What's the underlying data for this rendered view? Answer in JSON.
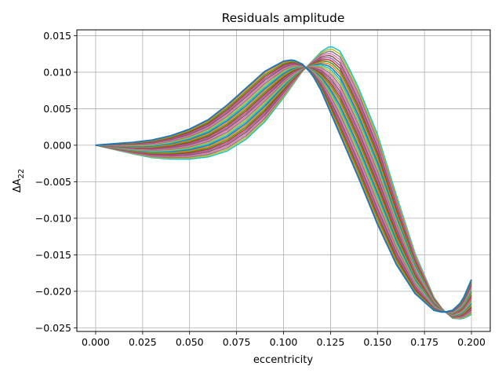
{
  "chart_data": {
    "type": "line",
    "title": "Residuals amplitude",
    "xlabel": "eccentricity",
    "ylabel": "ΔA22",
    "ylabel_main": "ΔA",
    "ylabel_sub": "22",
    "xlim": [
      -0.01,
      0.21
    ],
    "ylim": [
      -0.0255,
      0.0158
    ],
    "grid": true,
    "legend": "none",
    "x_ticks": [
      0.0,
      0.025,
      0.05,
      0.075,
      0.1,
      0.125,
      0.15,
      0.175,
      0.2
    ],
    "x_tick_labels": [
      "0.000",
      "0.025",
      "0.050",
      "0.075",
      "0.100",
      "0.125",
      "0.150",
      "0.175",
      "0.200"
    ],
    "y_ticks": [
      0.015,
      0.01,
      0.005,
      0.0,
      -0.005,
      -0.01,
      -0.015,
      -0.02,
      -0.025
    ],
    "y_tick_labels": [
      "0.015",
      "0.010",
      "0.005",
      "0.000",
      "−0.005",
      "−0.010",
      "−0.015",
      "−0.020",
      "−0.025"
    ],
    "series_count": 30,
    "series_colors": [
      "#1f77b4",
      "#ff7f0e",
      "#2ca02c",
      "#d62728",
      "#9467bd",
      "#8c564b",
      "#e377c2",
      "#7f7f7f",
      "#bcbd22",
      "#17becf"
    ],
    "envelope_first": {
      "x": [
        0.0,
        0.01,
        0.02,
        0.03,
        0.04,
        0.05,
        0.06,
        0.07,
        0.08,
        0.09,
        0.1,
        0.105,
        0.11,
        0.115,
        0.12,
        0.13,
        0.14,
        0.15,
        0.16,
        0.17,
        0.18,
        0.185,
        0.19,
        0.195,
        0.2
      ],
      "y": [
        0.0,
        0.0002,
        0.0004,
        0.0007,
        0.0013,
        0.0022,
        0.0035,
        0.0055,
        0.0078,
        0.0101,
        0.0115,
        0.0117,
        0.0111,
        0.0098,
        0.0075,
        0.0015,
        -0.0045,
        -0.0108,
        -0.0163,
        -0.0203,
        -0.0226,
        -0.0229,
        -0.0226,
        -0.0214,
        -0.0184
      ]
    },
    "envelope_last": {
      "x": [
        0.0,
        0.01,
        0.02,
        0.03,
        0.04,
        0.05,
        0.06,
        0.07,
        0.08,
        0.09,
        0.1,
        0.11,
        0.12,
        0.125,
        0.13,
        0.135,
        0.14,
        0.15,
        0.16,
        0.17,
        0.18,
        0.185,
        0.19,
        0.195,
        0.2
      ],
      "y": [
        0.0,
        -0.0006,
        -0.0012,
        -0.0017,
        -0.0019,
        -0.0019,
        -0.0016,
        -0.0008,
        0.0008,
        0.0032,
        0.0065,
        0.0101,
        0.0128,
        0.0136,
        0.0129,
        0.0105,
        0.0078,
        0.0015,
        -0.0068,
        -0.0148,
        -0.0208,
        -0.0226,
        -0.0237,
        -0.0238,
        -0.0232
      ]
    }
  }
}
